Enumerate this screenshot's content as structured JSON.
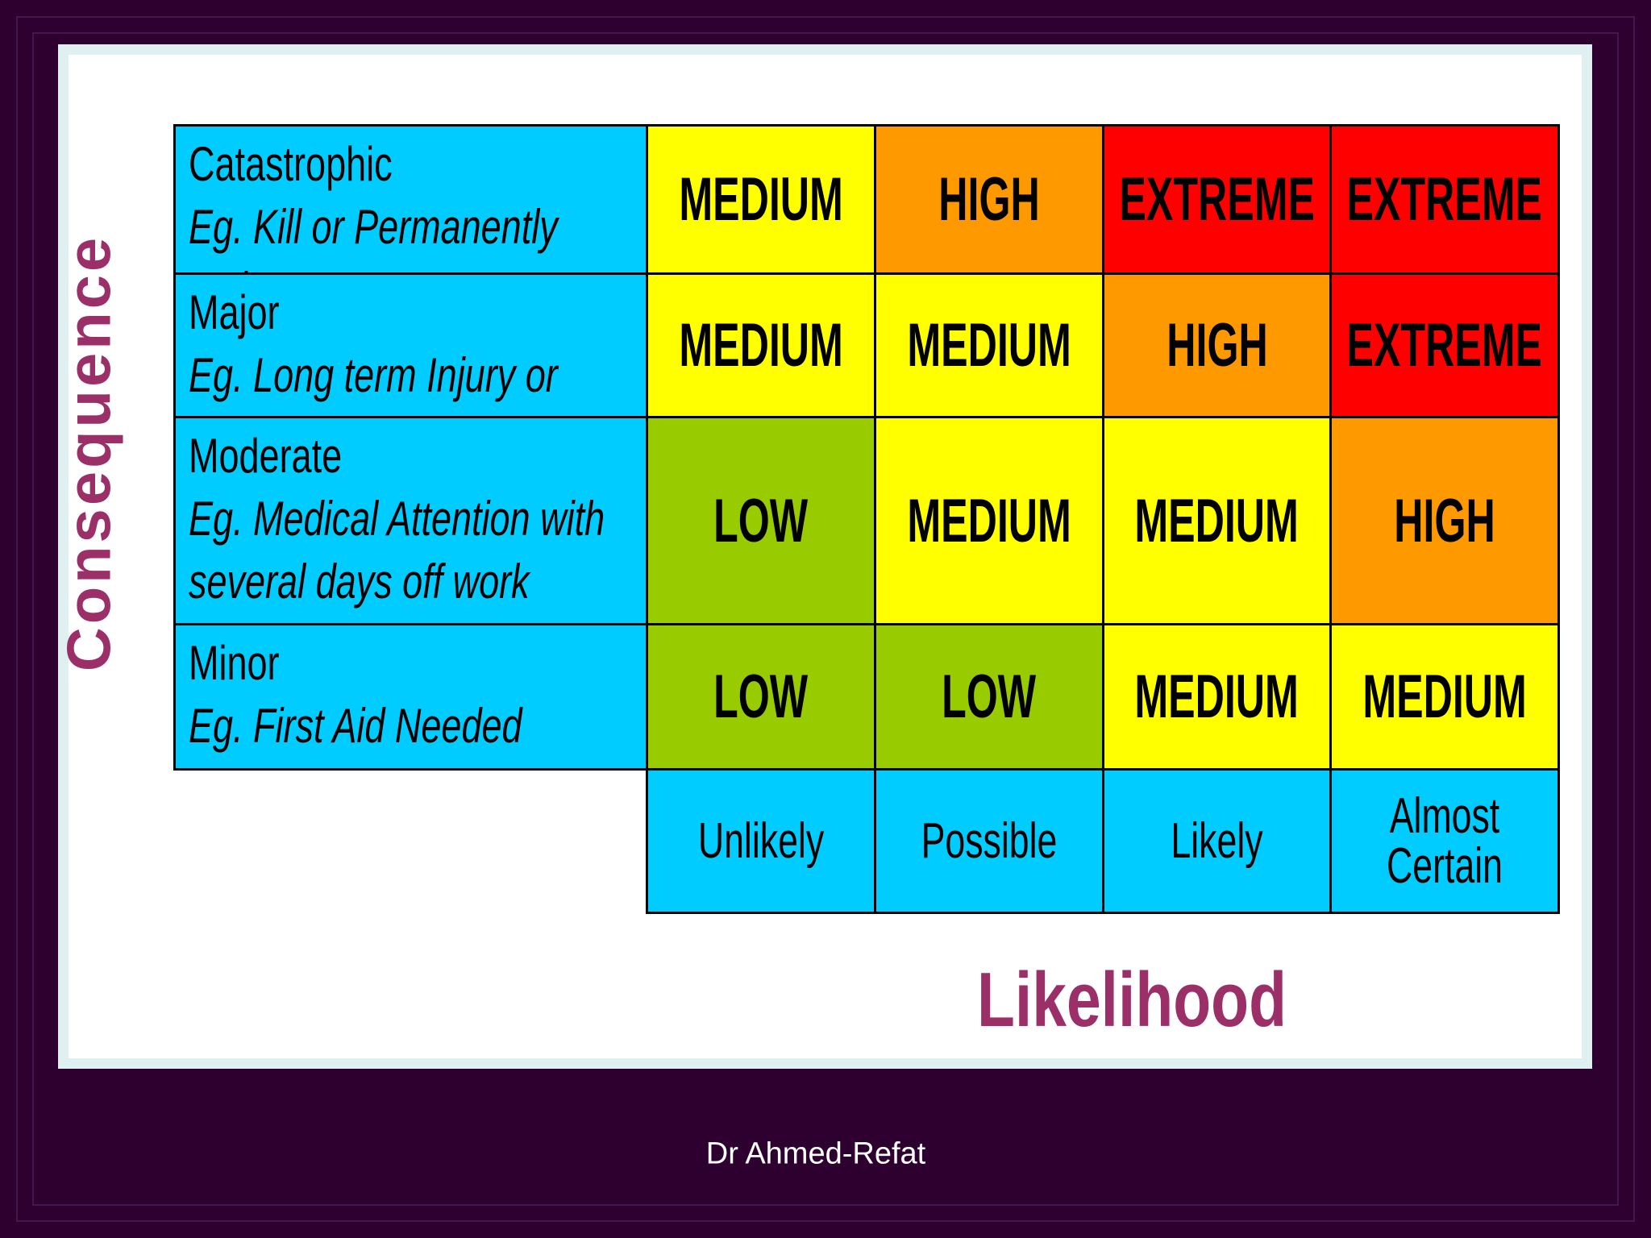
{
  "y_axis_label": "Consequence",
  "x_axis_label": "Likelihood",
  "footer": "Dr Ahmed-Refat",
  "rows": [
    {
      "name": "Catastrophic",
      "description": "Eg. Kill or Permanently Maim",
      "cells": [
        "MEDIUM",
        "HIGH",
        "EXTREME",
        "EXTREME"
      ]
    },
    {
      "name": "Major",
      "description": "Eg. Long term Injury or Illness",
      "cells": [
        "MEDIUM",
        "MEDIUM",
        "HIGH",
        "EXTREME"
      ]
    },
    {
      "name": "Moderate",
      "description": "Eg. Medical Attention with several days off work",
      "cells": [
        "LOW",
        "MEDIUM",
        "MEDIUM",
        "HIGH"
      ]
    },
    {
      "name": "Minor",
      "description": "Eg. First Aid Needed",
      "cells": [
        "LOW",
        "LOW",
        "MEDIUM",
        "MEDIUM"
      ]
    }
  ],
  "columns": [
    "Unlikely",
    "Possible",
    "Likely",
    "Almost Certain"
  ],
  "colors": {
    "label": "#00ccff",
    "LOW": "#99cc00",
    "MEDIUM": "#ffff00",
    "HIGH": "#ff9900",
    "EXTREME": "#ff0000"
  }
}
